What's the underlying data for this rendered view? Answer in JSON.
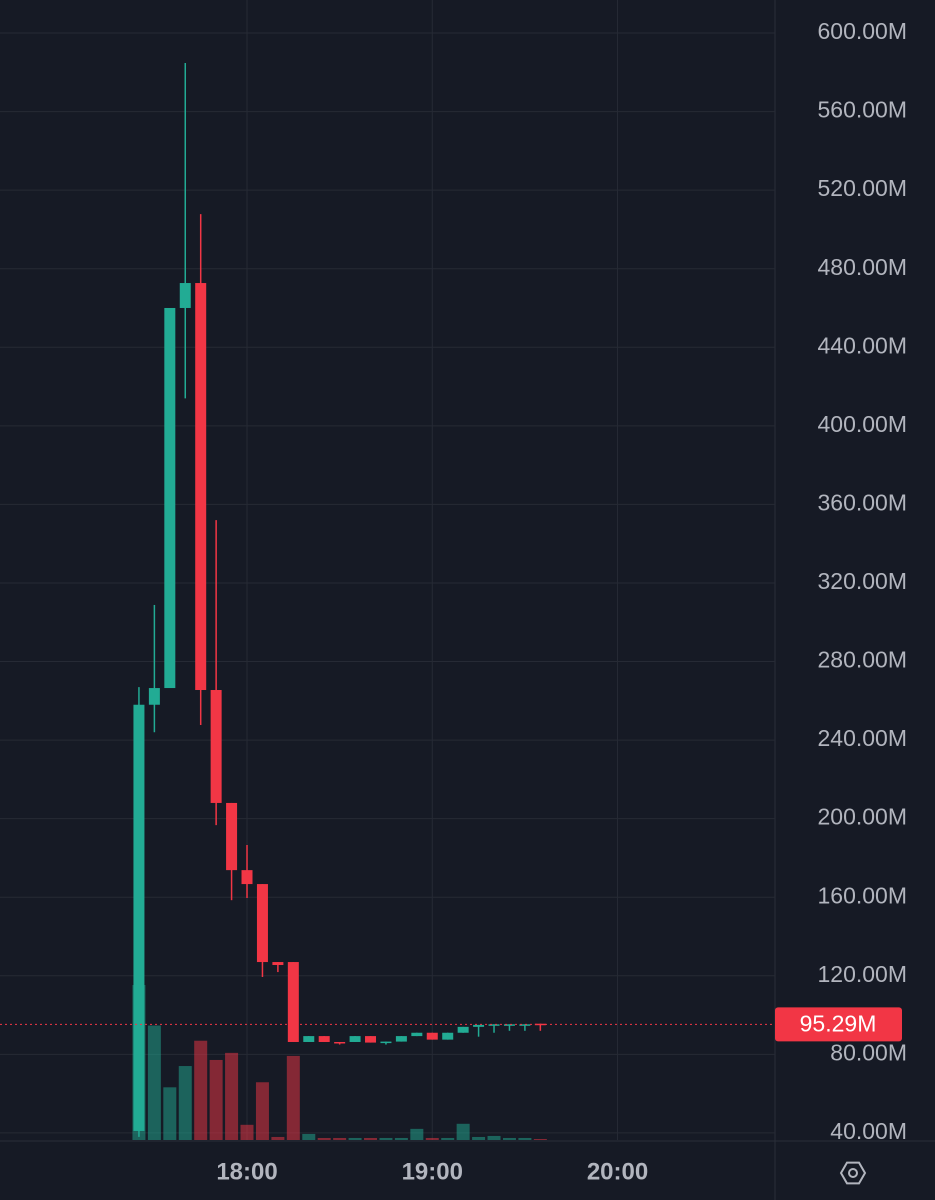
{
  "chart_data": {
    "type": "candlestick",
    "x": [
      "17:25",
      "17:30",
      "17:35",
      "17:40",
      "17:45",
      "17:50",
      "17:55",
      "18:00",
      "18:05",
      "18:10",
      "18:15",
      "18:20",
      "18:25",
      "18:30",
      "18:35",
      "18:40",
      "18:45",
      "18:50",
      "18:55",
      "19:00",
      "19:05",
      "19:10",
      "19:15",
      "19:20",
      "19:25",
      "19:30",
      "19:35"
    ],
    "open": [
      41,
      258,
      266.5,
      460,
      472.7,
      265.5,
      208,
      173.8,
      166.7,
      127,
      127,
      86.3,
      89.3,
      86.3,
      86.3,
      89.3,
      86,
      86.5,
      89.3,
      91,
      87.5,
      91,
      94,
      95,
      95.3,
      95.3,
      95.6
    ],
    "high": [
      267,
      308.8,
      460,
      584.7,
      507.8,
      352,
      208,
      186.6,
      166.7,
      127,
      127,
      89.3,
      89.3,
      86.3,
      89.3,
      89.3,
      86.5,
      89.3,
      91,
      91,
      91,
      94,
      95,
      95.3,
      95.3,
      95.3,
      95.6
    ],
    "low": [
      38,
      244,
      266.5,
      414,
      247.7,
      196.7,
      158.5,
      159.6,
      119.4,
      121.9,
      86.3,
      86.3,
      86.3,
      85,
      86.3,
      86,
      85,
      86.5,
      89.3,
      87.5,
      87.5,
      91,
      89,
      91,
      92,
      92,
      92
    ],
    "close": [
      258,
      266.5,
      460,
      472.7,
      265.5,
      208,
      173.8,
      166.7,
      127,
      125.5,
      86.3,
      89.3,
      86.3,
      86,
      89.3,
      86,
      86.5,
      89.3,
      91,
      87.5,
      91,
      94,
      95,
      95.3,
      95.3,
      95.3,
      95.29
    ],
    "volume": [
      153,
      113,
      52,
      73,
      98,
      79,
      86,
      15,
      57,
      3,
      83,
      6,
      2,
      2,
      2,
      2,
      2,
      2,
      11,
      2,
      2,
      16,
      3,
      4,
      2,
      2,
      1
    ],
    "up_color": "#22ab94",
    "down_color": "#f23645",
    "xlim": [
      "16:40",
      "20:51"
    ],
    "xticks": [
      "18:00",
      "19:00",
      "20:00"
    ],
    "ylim": [
      36.4,
      616.8
    ],
    "yticks": [
      {
        "value": 40,
        "label": "40.00M"
      },
      {
        "value": 80,
        "label": "80.00M"
      },
      {
        "value": 120,
        "label": "120.00M"
      },
      {
        "value": 160,
        "label": "160.00M"
      },
      {
        "value": 200,
        "label": "200.00M"
      },
      {
        "value": 240,
        "label": "240.00M"
      },
      {
        "value": 280,
        "label": "280.00M"
      },
      {
        "value": 320,
        "label": "320.00M"
      },
      {
        "value": 360,
        "label": "360.00M"
      },
      {
        "value": 400,
        "label": "400.00M"
      },
      {
        "value": 440,
        "label": "440.00M"
      },
      {
        "value": 480,
        "label": "480.00M"
      },
      {
        "value": 520,
        "label": "520.00M"
      },
      {
        "value": 560,
        "label": "560.00M"
      },
      {
        "value": 600,
        "label": "600.00M"
      }
    ],
    "last_price": {
      "value": 95.29,
      "label": "95.29M"
    },
    "grid": true
  }
}
